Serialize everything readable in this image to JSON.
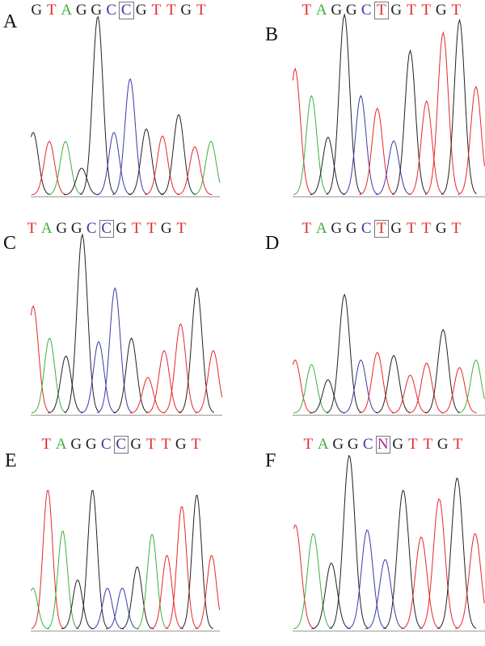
{
  "colors": {
    "G": "#222222",
    "T": "#e8262a",
    "A": "#3cb03c",
    "C": "#3a3aa8",
    "N": "#a0308c",
    "axis": "#999999"
  },
  "chart_data": [
    {
      "panel": "A",
      "type": "line",
      "sequence": [
        "G",
        "T",
        "A",
        "G",
        "G",
        "C",
        "C",
        "G",
        "T",
        "T",
        "G",
        "T"
      ],
      "highlight_index": 6,
      "peaks": [
        [
          "G",
          35
        ],
        [
          "T",
          30
        ],
        [
          "A",
          30
        ],
        [
          "G",
          15
        ],
        [
          "G",
          100
        ],
        [
          "C",
          35
        ],
        [
          "C",
          65
        ],
        [
          "G",
          37
        ],
        [
          "T",
          33
        ],
        [
          "G",
          45
        ],
        [
          "T",
          27
        ],
        [
          "A",
          30
        ]
      ]
    },
    {
      "panel": "B",
      "type": "line",
      "sequence": [
        "T",
        "A",
        "G",
        "G",
        "C",
        "T",
        "G",
        "T",
        "T",
        "G",
        "T"
      ],
      "highlight_index": 5,
      "peaks": [
        [
          "T",
          70
        ],
        [
          "A",
          55
        ],
        [
          "G",
          32
        ],
        [
          "G",
          100
        ],
        [
          "C",
          55
        ],
        [
          "T",
          48
        ],
        [
          "C",
          30
        ],
        [
          "G",
          80
        ],
        [
          "T",
          52
        ],
        [
          "T",
          90
        ],
        [
          "G",
          97
        ],
        [
          "T",
          60
        ]
      ]
    },
    {
      "panel": "C",
      "type": "line",
      "sequence": [
        "T",
        "A",
        "G",
        "G",
        "C",
        "C",
        "G",
        "T",
        "T",
        "G",
        "T"
      ],
      "highlight_index": 5,
      "peaks": [
        [
          "T",
          60
        ],
        [
          "A",
          42
        ],
        [
          "G",
          32
        ],
        [
          "G",
          100
        ],
        [
          "C",
          40
        ],
        [
          "C",
          70
        ],
        [
          "G",
          42
        ],
        [
          "T",
          20
        ],
        [
          "T",
          35
        ],
        [
          "T",
          50
        ],
        [
          "G",
          70
        ],
        [
          "T",
          35
        ]
      ]
    },
    {
      "panel": "D",
      "type": "line",
      "sequence": [
        "T",
        "A",
        "G",
        "G",
        "C",
        "T",
        "G",
        "T",
        "T",
        "G",
        "T"
      ],
      "highlight_index": 5,
      "peaks": [
        [
          "T",
          35
        ],
        [
          "A",
          32
        ],
        [
          "G",
          22
        ],
        [
          "G",
          78
        ],
        [
          "C",
          35
        ],
        [
          "T",
          40
        ],
        [
          "G",
          38
        ],
        [
          "T",
          25
        ],
        [
          "T",
          33
        ],
        [
          "G",
          55
        ],
        [
          "T",
          30
        ],
        [
          "A",
          35
        ]
      ]
    },
    {
      "panel": "E",
      "type": "line",
      "sequence": [
        "T",
        "A",
        "G",
        "G",
        "C",
        "C",
        "G",
        "T",
        "T",
        "G",
        "T"
      ],
      "highlight_index": 5,
      "peaks": [
        [
          "A",
          25
        ],
        [
          "T",
          85
        ],
        [
          "A",
          60
        ],
        [
          "G",
          30
        ],
        [
          "G",
          85
        ],
        [
          "C",
          25
        ],
        [
          "C",
          25
        ],
        [
          "G",
          38
        ],
        [
          "A",
          58
        ],
        [
          "T",
          45
        ],
        [
          "T",
          75
        ],
        [
          "G",
          82
        ],
        [
          "T",
          45
        ]
      ]
    },
    {
      "panel": "F",
      "type": "line",
      "sequence": [
        "T",
        "A",
        "G",
        "G",
        "C",
        "N",
        "G",
        "T",
        "T",
        "G",
        "T"
      ],
      "highlight_index": 5,
      "peaks": [
        [
          "T",
          60
        ],
        [
          "A",
          55
        ],
        [
          "G",
          38
        ],
        [
          "G",
          100
        ],
        [
          "C",
          57
        ],
        [
          "C",
          40
        ],
        [
          "G",
          80
        ],
        [
          "T",
          53
        ],
        [
          "T",
          75
        ],
        [
          "G",
          87
        ],
        [
          "T",
          55
        ]
      ]
    }
  ]
}
